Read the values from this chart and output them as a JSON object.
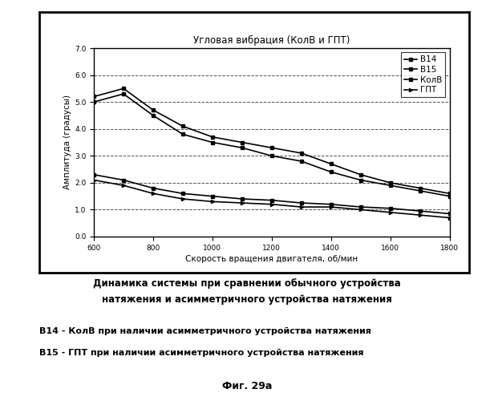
{
  "title": "Угловая вибрация (КолВ и ГПТ)",
  "xlabel": "Скорость вращения двигателя, об/мин",
  "ylabel": "Амплитуда (градусы)",
  "xlim": [
    600,
    1800
  ],
  "ylim": [
    0.0,
    7.0
  ],
  "xticks": [
    600,
    800,
    1000,
    1200,
    1400,
    1600,
    1800
  ],
  "yticks": [
    0.0,
    1.0,
    2.0,
    3.0,
    4.0,
    5.0,
    6.0,
    7.0
  ],
  "x_data": [
    600,
    700,
    800,
    900,
    1000,
    1100,
    1200,
    1300,
    1400,
    1500,
    1600,
    1700,
    1800
  ],
  "B14": [
    5.0,
    5.3,
    4.5,
    3.8,
    3.5,
    3.3,
    3.0,
    2.8,
    2.4,
    2.1,
    1.9,
    1.7,
    1.5
  ],
  "B15": [
    5.2,
    5.5,
    4.7,
    4.1,
    3.7,
    3.5,
    3.3,
    3.1,
    2.7,
    2.3,
    2.0,
    1.8,
    1.6
  ],
  "KolB": [
    2.3,
    2.1,
    1.8,
    1.6,
    1.5,
    1.4,
    1.35,
    1.25,
    1.2,
    1.1,
    1.05,
    0.95,
    0.85
  ],
  "GPT": [
    2.1,
    1.9,
    1.6,
    1.4,
    1.3,
    1.25,
    1.2,
    1.1,
    1.1,
    1.0,
    0.9,
    0.8,
    0.7
  ],
  "background_color": "#ffffff",
  "grid_color": "#333333",
  "caption_line1": "Динамика системы при сравнении обычного устройства",
  "caption_line2": "натяжения и асимметричного устройства натяжения",
  "b14_desc": "B14 - КолВ при наличии асимметричного устройства натяжения",
  "b15_desc": "B15 - ГПТ при наличии асимметричного устройства натяжения",
  "fig_label": "Фиг. 29а",
  "title_fontsize": 8.5,
  "axis_label_fontsize": 7.5,
  "tick_fontsize": 6.5,
  "legend_fontsize": 7.5,
  "caption_fontsize": 8.5,
  "desc_fontsize": 8.0,
  "figlabel_fontsize": 9.0
}
